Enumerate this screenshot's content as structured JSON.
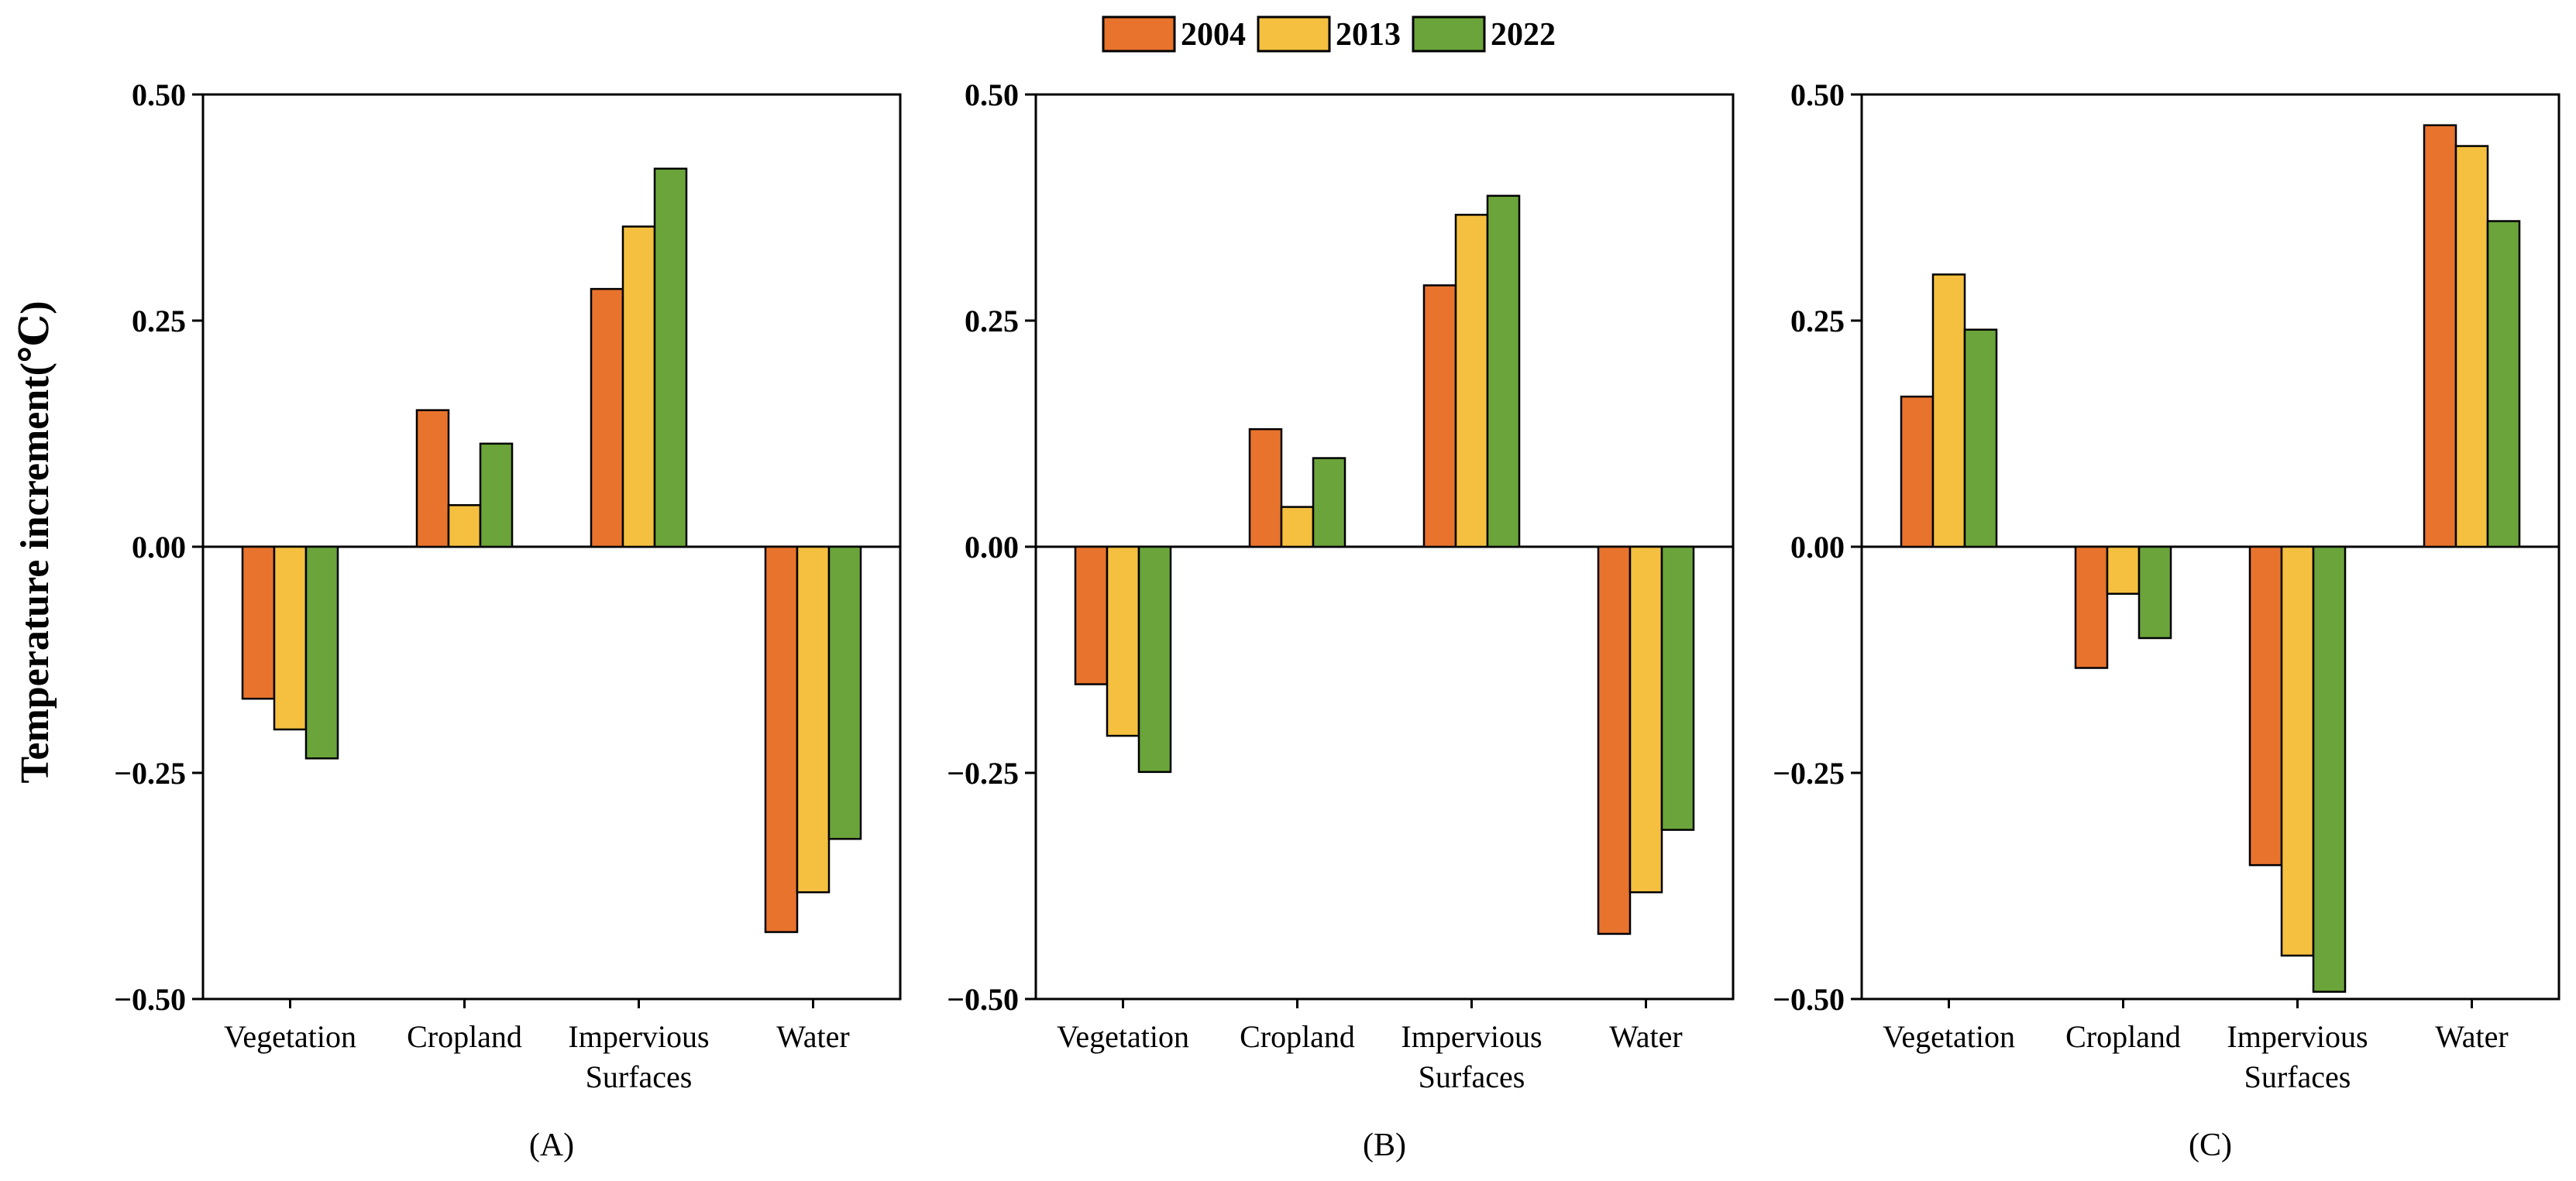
{
  "legend": {
    "entries": [
      {
        "name": "2004",
        "color": "#E8732D"
      },
      {
        "name": "2013",
        "color": "#F5C040"
      },
      {
        "name": "2022",
        "color": "#6BA43A"
      }
    ],
    "placement": "top-center"
  },
  "ylabel": "Temperature increment(℃)",
  "ytick_labels": [
    "0.50",
    "0.25",
    "0.00",
    "−0.25",
    "−0.50"
  ],
  "chart_data": [
    {
      "type": "bar",
      "panel_label": "(A)",
      "categories": [
        "Vegetation",
        "Cropland",
        "Impervious Surfaces",
        "Water"
      ],
      "category_lines": [
        [
          "Vegetation"
        ],
        [
          "Cropland"
        ],
        [
          "Impervious",
          "Surfaces"
        ],
        [
          "Water"
        ]
      ],
      "series": [
        {
          "name": "2004",
          "values": [
            -0.168,
            0.151,
            0.285,
            -0.426
          ]
        },
        {
          "name": "2013",
          "values": [
            -0.202,
            0.046,
            0.354,
            -0.382
          ]
        },
        {
          "name": "2022",
          "values": [
            -0.234,
            0.114,
            0.418,
            -0.323
          ]
        }
      ],
      "ylim": [
        -0.5,
        0.5
      ],
      "yticks": [
        0.5,
        0.25,
        0.0,
        -0.25,
        -0.5
      ],
      "grid": false
    },
    {
      "type": "bar",
      "panel_label": "(B)",
      "categories": [
        "Vegetation",
        "Cropland",
        "Impervious Surfaces",
        "Water"
      ],
      "category_lines": [
        [
          "Vegetation"
        ],
        [
          "Cropland"
        ],
        [
          "Impervious",
          "Surfaces"
        ],
        [
          "Water"
        ]
      ],
      "series": [
        {
          "name": "2004",
          "values": [
            -0.152,
            0.13,
            0.289,
            -0.428
          ]
        },
        {
          "name": "2013",
          "values": [
            -0.209,
            0.044,
            0.367,
            -0.382
          ]
        },
        {
          "name": "2022",
          "values": [
            -0.249,
            0.098,
            0.388,
            -0.313
          ]
        }
      ],
      "ylim": [
        -0.5,
        0.5
      ],
      "yticks": [
        0.5,
        0.25,
        0.0,
        -0.25,
        -0.5
      ],
      "grid": false
    },
    {
      "type": "bar",
      "panel_label": "(C)",
      "categories": [
        "Vegetation",
        "Cropland",
        "Impervious Surfaces",
        "Water"
      ],
      "category_lines": [
        [
          "Vegetation"
        ],
        [
          "Cropland"
        ],
        [
          "Impervious",
          "Surfaces"
        ],
        [
          "Water"
        ]
      ],
      "series": [
        {
          "name": "2004",
          "values": [
            0.166,
            -0.134,
            -0.352,
            0.466
          ]
        },
        {
          "name": "2013",
          "values": [
            0.301,
            -0.052,
            -0.452,
            0.443
          ]
        },
        {
          "name": "2022",
          "values": [
            0.24,
            -0.101,
            -0.492,
            0.36
          ]
        }
      ],
      "ylim": [
        -0.5,
        0.5
      ],
      "yticks": [
        0.5,
        0.25,
        0.0,
        -0.25,
        -0.5
      ],
      "grid": false
    }
  ]
}
